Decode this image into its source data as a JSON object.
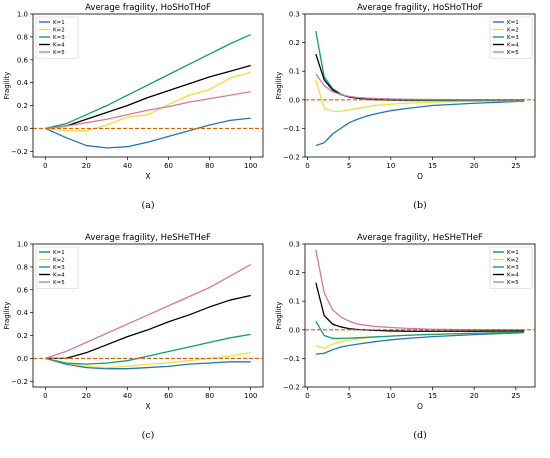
{
  "colors": {
    "K=1": "#1f77b4",
    "K=2": "#f5dc3c",
    "K=3": "#109e73",
    "K=4": "#000000",
    "K=5": "#d577a6",
    "zero_line": "#d95f02"
  },
  "chart_data": [
    {
      "id": "a",
      "type": "line",
      "title": "Average fragility, HoSHoTHoF",
      "xlabel": "X",
      "ylabel": "Fragility",
      "caption": "(a)",
      "xlim": [
        -6,
        106
      ],
      "ylim": [
        -0.25,
        1.0
      ],
      "xticks": [
        0,
        20,
        40,
        60,
        80,
        100
      ],
      "yticks": [
        -0.2,
        0.0,
        0.2,
        0.4,
        0.6,
        0.8,
        1.0
      ],
      "yticklabels": [
        "−0.2",
        "0.0",
        "0.2",
        "0.4",
        "0.6",
        "0.8",
        "1.0"
      ],
      "legend_position": "top-left",
      "zero_line": true,
      "series": [
        {
          "name": "K=1",
          "x": [
            0,
            10,
            20,
            30,
            40,
            50,
            60,
            70,
            80,
            90,
            100
          ],
          "y": [
            0.0,
            -0.08,
            -0.15,
            -0.17,
            -0.16,
            -0.12,
            -0.07,
            -0.02,
            0.03,
            0.07,
            0.09
          ]
        },
        {
          "name": "K=2",
          "x": [
            0,
            10,
            20,
            30,
            40,
            50,
            60,
            70,
            80,
            90,
            100
          ],
          "y": [
            0.0,
            -0.02,
            -0.02,
            0.03,
            0.1,
            0.12,
            0.21,
            0.29,
            0.34,
            0.44,
            0.49
          ]
        },
        {
          "name": "K=3",
          "x": [
            0,
            10,
            20,
            30,
            40,
            50,
            60,
            70,
            80,
            90,
            100
          ],
          "y": [
            0.0,
            0.04,
            0.12,
            0.2,
            0.29,
            0.38,
            0.47,
            0.56,
            0.65,
            0.74,
            0.82
          ]
        },
        {
          "name": "K=4",
          "x": [
            0,
            10,
            20,
            30,
            40,
            50,
            60,
            70,
            80,
            90,
            100
          ],
          "y": [
            0.0,
            0.02,
            0.08,
            0.14,
            0.2,
            0.27,
            0.33,
            0.39,
            0.45,
            0.5,
            0.55
          ]
        },
        {
          "name": "K=5",
          "x": [
            0,
            10,
            20,
            30,
            40,
            50,
            60,
            70,
            80,
            90,
            100
          ],
          "y": [
            0.0,
            0.02,
            0.05,
            0.08,
            0.12,
            0.16,
            0.19,
            0.23,
            0.26,
            0.29,
            0.32
          ]
        }
      ]
    },
    {
      "id": "b",
      "type": "line",
      "title": "Average fragility, HoSHoTHoF",
      "xlabel": "O",
      "ylabel": "Fragility",
      "caption": "(b)",
      "xlim": [
        -0.3,
        27.3
      ],
      "ylim": [
        -0.2,
        0.3
      ],
      "xticks": [
        0,
        5,
        10,
        15,
        20,
        25
      ],
      "yticks": [
        -0.2,
        -0.1,
        0.0,
        0.1,
        0.2,
        0.3
      ],
      "yticklabels": [
        "−0.2",
        "−0.1",
        "0.0",
        "0.1",
        "0.2",
        "0.3"
      ],
      "legend_position": "top-right",
      "zero_line": true,
      "series": [
        {
          "name": "K=1",
          "x": [
            1,
            2,
            3,
            4,
            5,
            6,
            7,
            8,
            10,
            12,
            15,
            20,
            26
          ],
          "y": [
            -0.16,
            -0.15,
            -0.12,
            -0.1,
            -0.08,
            -0.068,
            -0.058,
            -0.05,
            -0.038,
            -0.03,
            -0.02,
            -0.012,
            -0.005
          ]
        },
        {
          "name": "K=2",
          "x": [
            1,
            2,
            3,
            4,
            5,
            6,
            7,
            8,
            10,
            12,
            15,
            20,
            26
          ],
          "y": [
            0.07,
            -0.03,
            -0.04,
            -0.04,
            -0.035,
            -0.03,
            -0.025,
            -0.02,
            -0.015,
            -0.012,
            -0.008,
            -0.005,
            -0.003
          ]
        },
        {
          "name": "K=3",
          "x": [
            1,
            2,
            3,
            4,
            5,
            6,
            7,
            8,
            10,
            12,
            15,
            20,
            26
          ],
          "y": [
            0.24,
            0.08,
            0.04,
            0.02,
            0.01,
            0.005,
            0.002,
            0.0,
            -0.002,
            -0.003,
            -0.003,
            -0.003,
            -0.002
          ]
        },
        {
          "name": "K=4",
          "x": [
            1,
            2,
            3,
            4,
            5,
            6,
            7,
            8,
            10,
            12,
            15,
            20,
            26
          ],
          "y": [
            0.16,
            0.07,
            0.035,
            0.018,
            0.01,
            0.006,
            0.004,
            0.002,
            0.001,
            0.0,
            0.0,
            0.0,
            0.0
          ]
        },
        {
          "name": "K=5",
          "x": [
            1,
            2,
            3,
            4,
            5,
            6,
            7,
            8,
            10,
            12,
            15,
            20,
            26
          ],
          "y": [
            0.09,
            0.05,
            0.028,
            0.018,
            0.012,
            0.008,
            0.006,
            0.005,
            0.003,
            0.002,
            0.001,
            0.0,
            0.0
          ]
        }
      ]
    },
    {
      "id": "c",
      "type": "line",
      "title": "Average fragility, HeSHeTHeF",
      "xlabel": "X",
      "ylabel": "Fragility",
      "caption": "(c)",
      "xlim": [
        -6,
        106
      ],
      "ylim": [
        -0.25,
        1.0
      ],
      "xticks": [
        0,
        20,
        40,
        60,
        80,
        100
      ],
      "yticks": [
        -0.2,
        0.0,
        0.2,
        0.4,
        0.6,
        0.8,
        1.0
      ],
      "yticklabels": [
        "−0.2",
        "0.0",
        "0.2",
        "0.4",
        "0.6",
        "0.8",
        "1.0"
      ],
      "legend_position": "top-left",
      "zero_line": true,
      "series": [
        {
          "name": "K=1",
          "x": [
            0,
            10,
            20,
            30,
            40,
            50,
            60,
            70,
            80,
            90,
            100
          ],
          "y": [
            0.0,
            -0.05,
            -0.08,
            -0.09,
            -0.09,
            -0.08,
            -0.07,
            -0.05,
            -0.04,
            -0.03,
            -0.03
          ]
        },
        {
          "name": "K=2",
          "x": [
            0,
            10,
            20,
            30,
            40,
            50,
            60,
            70,
            80,
            90,
            100
          ],
          "y": [
            0.0,
            -0.04,
            -0.07,
            -0.08,
            -0.07,
            -0.05,
            -0.04,
            -0.02,
            0.0,
            0.02,
            0.05
          ]
        },
        {
          "name": "K=3",
          "x": [
            0,
            10,
            20,
            30,
            40,
            50,
            60,
            70,
            80,
            90,
            100
          ],
          "y": [
            0.0,
            -0.04,
            -0.05,
            -0.04,
            -0.02,
            0.02,
            0.06,
            0.1,
            0.14,
            0.18,
            0.21
          ]
        },
        {
          "name": "K=4",
          "x": [
            0,
            10,
            20,
            30,
            40,
            50,
            60,
            70,
            80,
            90,
            100
          ],
          "y": [
            0.0,
            0.0,
            0.05,
            0.12,
            0.19,
            0.25,
            0.32,
            0.38,
            0.45,
            0.51,
            0.55
          ]
        },
        {
          "name": "K=5",
          "x": [
            0,
            10,
            20,
            30,
            40,
            50,
            60,
            70,
            80,
            90,
            100
          ],
          "y": [
            0.0,
            0.06,
            0.14,
            0.22,
            0.3,
            0.38,
            0.46,
            0.54,
            0.62,
            0.72,
            0.82
          ]
        }
      ]
    },
    {
      "id": "d",
      "type": "line",
      "title": "Average fragility, HeSHeTHeF",
      "xlabel": "O",
      "ylabel": "Fragility",
      "caption": "(d)",
      "xlim": [
        -0.3,
        27.3
      ],
      "ylim": [
        -0.2,
        0.3
      ],
      "xticks": [
        0,
        5,
        10,
        15,
        20,
        25
      ],
      "yticks": [
        -0.2,
        -0.1,
        0.0,
        0.1,
        0.2,
        0.3
      ],
      "yticklabels": [
        "−0.2",
        "−0.1",
        "0.0",
        "0.1",
        "0.2",
        "0.3"
      ],
      "legend_position": "top-right",
      "zero_line": true,
      "series": [
        {
          "name": "K=1",
          "x": [
            1,
            2,
            3,
            4,
            5,
            6,
            8,
            10,
            12,
            15,
            20,
            26
          ],
          "y": [
            -0.085,
            -0.082,
            -0.07,
            -0.06,
            -0.055,
            -0.05,
            -0.042,
            -0.035,
            -0.03,
            -0.024,
            -0.017,
            -0.01
          ]
        },
        {
          "name": "K=2",
          "x": [
            1,
            2,
            3,
            4,
            5,
            6,
            8,
            10,
            12,
            15,
            20,
            26
          ],
          "y": [
            -0.055,
            -0.065,
            -0.05,
            -0.042,
            -0.036,
            -0.032,
            -0.026,
            -0.022,
            -0.019,
            -0.016,
            -0.012,
            -0.008
          ]
        },
        {
          "name": "K=3",
          "x": [
            1,
            2,
            3,
            4,
            5,
            6,
            8,
            10,
            12,
            15,
            20,
            26
          ],
          "y": [
            0.03,
            -0.02,
            -0.03,
            -0.03,
            -0.029,
            -0.028,
            -0.025,
            -0.022,
            -0.019,
            -0.016,
            -0.012,
            -0.009
          ]
        },
        {
          "name": "K=4",
          "x": [
            1,
            2,
            3,
            4,
            5,
            6,
            8,
            10,
            12,
            15,
            20,
            26
          ],
          "y": [
            0.165,
            0.05,
            0.02,
            0.01,
            0.004,
            0.001,
            -0.002,
            -0.004,
            -0.005,
            -0.005,
            -0.005,
            -0.004
          ]
        },
        {
          "name": "K=5",
          "x": [
            1,
            2,
            3,
            4,
            5,
            6,
            8,
            10,
            12,
            15,
            20,
            26
          ],
          "y": [
            0.28,
            0.13,
            0.07,
            0.045,
            0.03,
            0.02,
            0.012,
            0.008,
            0.005,
            0.002,
            0.0,
            0.0
          ]
        }
      ]
    }
  ]
}
